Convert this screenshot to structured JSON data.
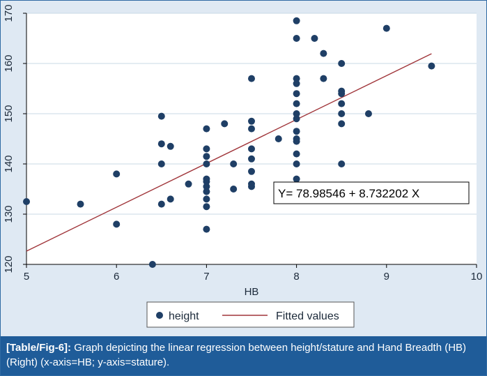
{
  "chart_data": {
    "type": "scatter",
    "xlabel": "HB",
    "ylabel": "",
    "xlim": [
      5,
      10
    ],
    "ylim": [
      120,
      170
    ],
    "xticks": [
      5,
      6,
      7,
      8,
      9,
      10
    ],
    "yticks": [
      120,
      130,
      140,
      150,
      160,
      170
    ],
    "grid": true,
    "legend_position": "bottom",
    "series": [
      {
        "name": "height",
        "kind": "scatter",
        "color": "#1f3f66",
        "points": [
          [
            5.0,
            132.5
          ],
          [
            5.6,
            132
          ],
          [
            6.0,
            128
          ],
          [
            6.0,
            138
          ],
          [
            6.4,
            120
          ],
          [
            6.5,
            132
          ],
          [
            6.5,
            140
          ],
          [
            6.5,
            144
          ],
          [
            6.5,
            149.5
          ],
          [
            6.6,
            143.5
          ],
          [
            6.6,
            133
          ],
          [
            6.8,
            136
          ],
          [
            7.0,
            127
          ],
          [
            7.0,
            131.5
          ],
          [
            7.0,
            133
          ],
          [
            7.0,
            134.5
          ],
          [
            7.0,
            135.5
          ],
          [
            7.0,
            136.5
          ],
          [
            7.0,
            137
          ],
          [
            7.0,
            140
          ],
          [
            7.0,
            141.5
          ],
          [
            7.0,
            143
          ],
          [
            7.0,
            147
          ],
          [
            7.2,
            148
          ],
          [
            7.3,
            135
          ],
          [
            7.3,
            140
          ],
          [
            7.5,
            135.5
          ],
          [
            7.5,
            136
          ],
          [
            7.5,
            138.5
          ],
          [
            7.5,
            141
          ],
          [
            7.5,
            143
          ],
          [
            7.5,
            147
          ],
          [
            7.5,
            148.5
          ],
          [
            7.5,
            157
          ],
          [
            7.8,
            145
          ],
          [
            8.0,
            137
          ],
          [
            8.0,
            140
          ],
          [
            8.0,
            142
          ],
          [
            8.0,
            144.5
          ],
          [
            8.0,
            145
          ],
          [
            8.0,
            146.5
          ],
          [
            8.0,
            149
          ],
          [
            8.0,
            150
          ],
          [
            8.0,
            152
          ],
          [
            8.0,
            154
          ],
          [
            8.0,
            156
          ],
          [
            8.0,
            157
          ],
          [
            8.0,
            165
          ],
          [
            8.0,
            168.5
          ],
          [
            8.2,
            165
          ],
          [
            8.3,
            157
          ],
          [
            8.3,
            162
          ],
          [
            8.5,
            140
          ],
          [
            8.5,
            148
          ],
          [
            8.5,
            150
          ],
          [
            8.5,
            152
          ],
          [
            8.5,
            154
          ],
          [
            8.5,
            154.5
          ],
          [
            8.5,
            160
          ],
          [
            8.8,
            150
          ],
          [
            9.0,
            167
          ],
          [
            9.5,
            159.5
          ]
        ]
      },
      {
        "name": "Fitted values",
        "kind": "line",
        "color": "#a0353a",
        "intercept": 78.98546,
        "slope": 8.732202,
        "x_range": [
          5,
          9.5
        ]
      }
    ],
    "annotation": "Y= 78.98546 + 8.732202 X"
  },
  "caption": {
    "tag": "[Table/Fig-6]:",
    "text": " Graph depicting the linear regression between height/stature and Hand Breadth (HB) (Right) (x-axis=HB; y-axis=stature)."
  },
  "colors": {
    "figure_bg": "#dfe9f3",
    "plot_bg": "#ffffff",
    "grid": "#c9d9e6",
    "caption_bg": "#1f5c99"
  }
}
